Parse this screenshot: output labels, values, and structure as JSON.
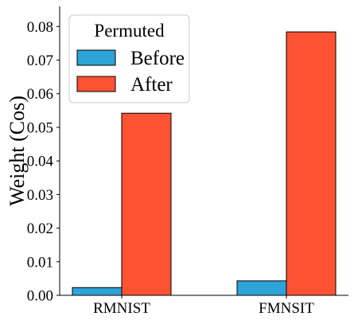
{
  "chart_data": {
    "type": "bar",
    "categories": [
      "RMNIST",
      "FMNSIT"
    ],
    "series": [
      {
        "name": "Before",
        "values": [
          0.0023,
          0.0043
        ],
        "color": "#2ea3d8"
      },
      {
        "name": "After",
        "values": [
          0.0542,
          0.0784
        ],
        "color": "#ff5233"
      }
    ],
    "title": "",
    "xlabel": "",
    "ylabel": "Weight (Cos)",
    "ylim": [
      0,
      0.086
    ],
    "yticks": [
      "0.00",
      "0.01",
      "0.02",
      "0.03",
      "0.04",
      "0.05",
      "0.06",
      "0.07",
      "0.08"
    ],
    "legend": {
      "title": "Permuted",
      "placement": "top-left"
    },
    "grid": false
  }
}
